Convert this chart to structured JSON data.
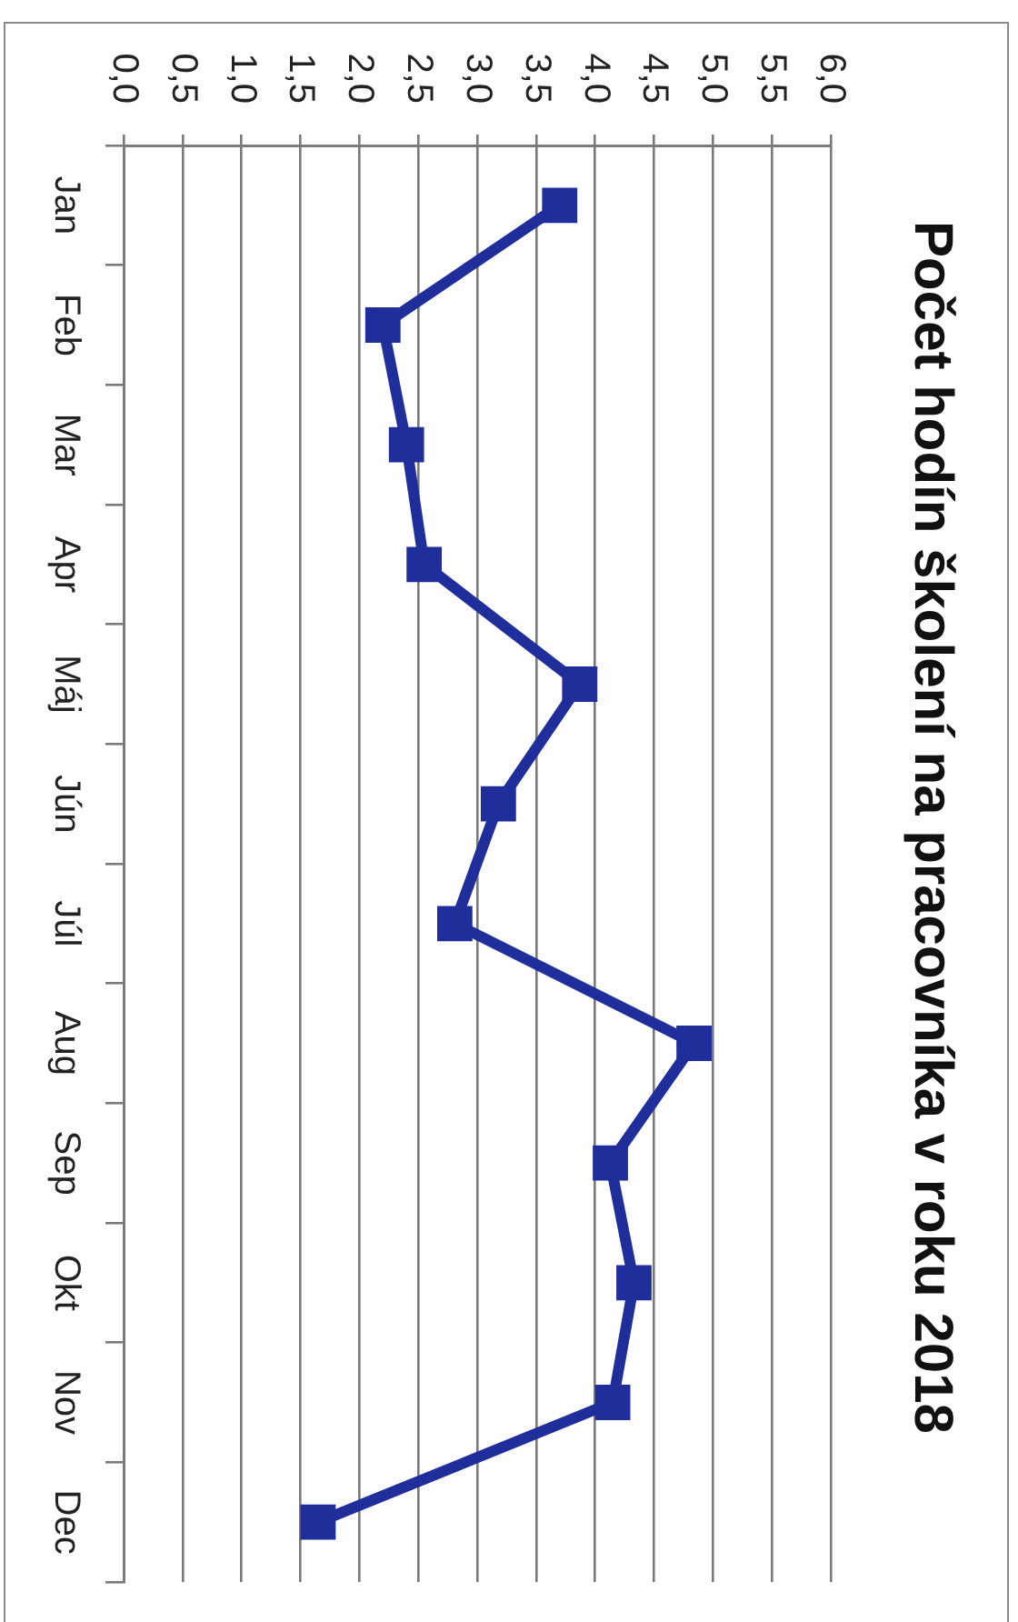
{
  "chart_data": {
    "type": "line",
    "orientation": "horizontal",
    "title": "Počet hodín školení na pracovníka v roku 2018",
    "categories": [
      "Jan",
      "Feb",
      "Mar",
      "Apr",
      "Máj",
      "Jún",
      "Júl",
      "Aug",
      "Sep",
      "Okt",
      "Nov",
      "Dec"
    ],
    "series": [
      {
        "color": "#1f2e9a",
        "values": [
          3.7,
          2.2,
          2.4,
          2.55,
          3.87,
          3.18,
          2.81,
          4.84,
          4.13,
          4.33,
          4.15,
          1.65
        ]
      }
    ],
    "xlim": [
      0,
      6
    ],
    "xticks": [
      {
        "value": 0,
        "label": "0,0"
      },
      {
        "value": 0.5,
        "label": "0,5"
      },
      {
        "value": 1,
        "label": "1,0"
      },
      {
        "value": 1.5,
        "label": "1,5"
      },
      {
        "value": 2,
        "label": "2,0"
      },
      {
        "value": 2.5,
        "label": "2,5"
      },
      {
        "value": 3,
        "label": "3,0"
      },
      {
        "value": 3.5,
        "label": "3,5"
      },
      {
        "value": 4,
        "label": "4,0"
      },
      {
        "value": 4.5,
        "label": "4,5"
      },
      {
        "value": 5,
        "label": "5,0"
      },
      {
        "value": 5.5,
        "label": "5,5"
      },
      {
        "value": 6,
        "label": "6,0"
      }
    ],
    "grid": "x",
    "marker": "square",
    "line_style": "solid"
  }
}
